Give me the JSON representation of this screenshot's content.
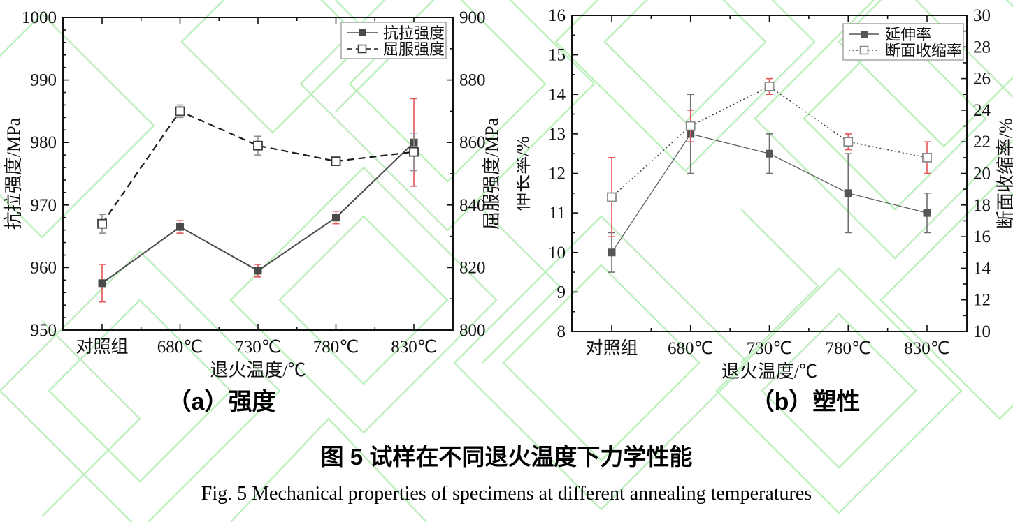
{
  "figure": {
    "caption_zh": "图 5 试样在不同退火温度下力学性能",
    "caption_en": "Fig. 5 Mechanical properties of specimens at different annealing temperatures",
    "watermark_color": "#bfefbf"
  },
  "chart_data": [
    {
      "type": "line",
      "panel_caption": "（a）强度",
      "categories": [
        "对照组",
        "680℃",
        "730℃",
        "780℃",
        "830℃"
      ],
      "xlabel": "退火温度/℃",
      "left_axis": {
        "label": "抗拉强度/MPa",
        "min": 950,
        "max": 1000,
        "major": 10,
        "minor": 2
      },
      "right_axis": {
        "label": "屈服强度/MPa",
        "min": 800,
        "max": 900,
        "major": 20,
        "minor": 10
      },
      "grid": false,
      "legend_position": "top-right",
      "series": [
        {
          "name": "抗拉强度",
          "axis": "left",
          "line": "solid",
          "line_width": 2,
          "marker": "filled-square",
          "color": "#4a4a4a",
          "error_color": "#e25757",
          "values": [
            957.5,
            966.5,
            959.5,
            968,
            980
          ],
          "errors": [
            3,
            1,
            1,
            1,
            7
          ]
        },
        {
          "name": "屈服强度",
          "axis": "right",
          "line": "dashed",
          "line_width": 2.2,
          "marker": "open-square",
          "color": "#1c1c1c",
          "marker_color": "#3d3d3d",
          "error_color": "#8f8f8f",
          "values": [
            834,
            870,
            859,
            854,
            857
          ],
          "errors": [
            3,
            2,
            3,
            1,
            6
          ]
        }
      ]
    },
    {
      "type": "line",
      "panel_caption": "（b）塑性",
      "categories": [
        "对照组",
        "680℃",
        "730℃",
        "780℃",
        "830℃"
      ],
      "xlabel": "退火温度/℃",
      "left_axis": {
        "label": "伸长率/%",
        "min": 8,
        "max": 16,
        "major": 1,
        "minor": 0.5
      },
      "right_axis": {
        "label": "断面收缩率/%",
        "min": 10,
        "max": 30,
        "major": 2,
        "minor": 1
      },
      "grid": false,
      "legend_position": "top-right",
      "series": [
        {
          "name": "延伸率",
          "axis": "left",
          "line": "solid",
          "line_width": 1.2,
          "marker": "filled-square",
          "color": "#555555",
          "error_color": "#6f6f6f",
          "values": [
            10,
            13,
            12.5,
            11.5,
            11
          ],
          "errors": [
            0.5,
            1,
            0.5,
            1,
            0.5
          ]
        },
        {
          "name": "断面收缩率",
          "axis": "right",
          "line": "dotted",
          "line_width": 1.4,
          "marker": "open-square",
          "color": "#3c3c3c",
          "marker_color": "#8a8a8a",
          "error_color": "#e25757",
          "values": [
            18.5,
            23,
            25.5,
            22,
            21
          ],
          "errors": [
            2.5,
            1,
            0.5,
            0.5,
            1
          ]
        }
      ]
    }
  ]
}
